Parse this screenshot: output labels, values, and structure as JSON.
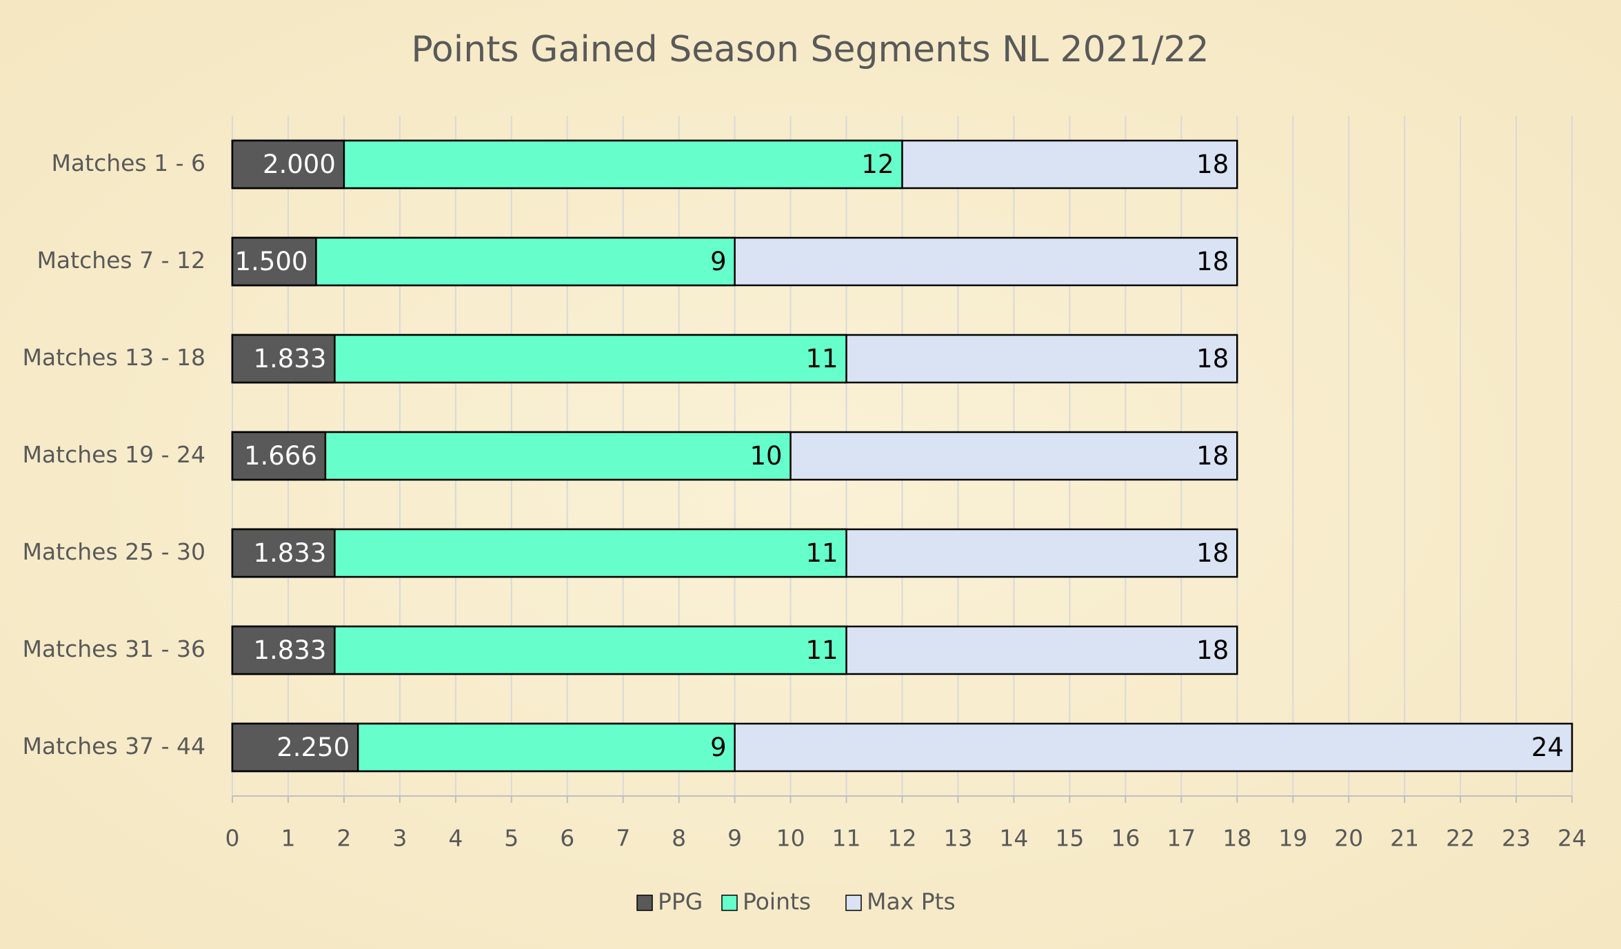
{
  "chart_data": {
    "type": "bar",
    "orientation": "horizontal",
    "overlap": true,
    "title": "Points Gained Season Segments NL 2021/22",
    "categories": [
      "Matches 1 - 6",
      "Matches 7 - 12",
      "Matches 13 - 18",
      "Matches 19 - 24",
      "Matches 25 - 30",
      "Matches 31 - 36",
      "Matches 37 - 44"
    ],
    "series": [
      {
        "name": "PPG",
        "color": "#595959",
        "values": [
          2,
          1.5,
          1.833,
          1.666,
          1.833,
          1.833,
          2.25
        ],
        "value_labels": [
          "2.000",
          "1.500",
          "1.833",
          "1.666",
          "1.833",
          "1.833",
          "2.250"
        ]
      },
      {
        "name": "Points",
        "color": "#66ffcc",
        "values": [
          12,
          9,
          11,
          10,
          11,
          11,
          9
        ]
      },
      {
        "name": "Max Pts",
        "color": "#dae3f3",
        "values": [
          18,
          18,
          18,
          18,
          18,
          18,
          24
        ]
      }
    ],
    "xlim": [
      0,
      24
    ],
    "xticks": [
      0,
      1,
      2,
      3,
      4,
      5,
      6,
      7,
      8,
      9,
      10,
      11,
      12,
      13,
      14,
      15,
      16,
      17,
      18,
      19,
      20,
      21,
      22,
      23,
      24
    ],
    "grid": true,
    "legend": "bottom"
  }
}
